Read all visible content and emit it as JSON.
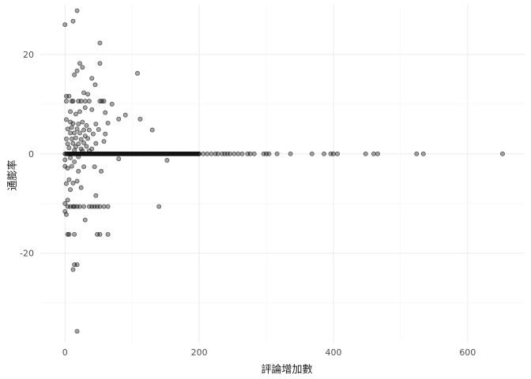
{
  "chart_data": {
    "type": "scatter",
    "xlabel": "評論增加數",
    "ylabel": "通膨率",
    "xlim": [
      -38,
      685
    ],
    "ylim": [
      -38,
      30
    ],
    "x_ticks": [
      0,
      200,
      400,
      600
    ],
    "y_ticks": [
      -20,
      0,
      20
    ],
    "x_minor": [
      100,
      300,
      500
    ],
    "y_minor": [
      -30,
      -10,
      10
    ],
    "x_tick_labels": [
      "0",
      "200",
      "400",
      "600"
    ],
    "y_tick_labels": [
      "-20",
      "0",
      "20"
    ],
    "grid": true,
    "point_color": "#000000",
    "points": [
      {
        "x": 0,
        "y": 26
      },
      {
        "x": 12,
        "y": 26.7
      },
      {
        "x": 18,
        "y": 28.8
      },
      {
        "x": 52,
        "y": 22.3
      },
      {
        "x": 18,
        "y": 16.7
      },
      {
        "x": 22,
        "y": 18.2
      },
      {
        "x": 26,
        "y": 17.4
      },
      {
        "x": 14,
        "y": 15.9
      },
      {
        "x": 108,
        "y": 16.2
      },
      {
        "x": 40,
        "y": 15.2
      },
      {
        "x": 45,
        "y": 13.9
      },
      {
        "x": 52,
        "y": 18.2
      },
      {
        "x": 2,
        "y": 11.6
      },
      {
        "x": 6,
        "y": 11.6
      },
      {
        "x": 28,
        "y": 12.3
      },
      {
        "x": 34,
        "y": 12.0
      },
      {
        "x": 2,
        "y": 10.6
      },
      {
        "x": 10,
        "y": 10.6
      },
      {
        "x": 12,
        "y": 10.6
      },
      {
        "x": 20,
        "y": 10.6
      },
      {
        "x": 24,
        "y": 10.6
      },
      {
        "x": 30,
        "y": 10.6
      },
      {
        "x": 36,
        "y": 10.6
      },
      {
        "x": 52,
        "y": 10.6
      },
      {
        "x": 55,
        "y": 10.6
      },
      {
        "x": 58,
        "y": 10.6
      },
      {
        "x": 70,
        "y": 10.0
      },
      {
        "x": 30,
        "y": 9.3
      },
      {
        "x": 8,
        "y": 8.5
      },
      {
        "x": 16,
        "y": 8.0
      },
      {
        "x": 22,
        "y": 8.5
      },
      {
        "x": 40,
        "y": 8.9
      },
      {
        "x": 60,
        "y": 8.3
      },
      {
        "x": 90,
        "y": 7.8
      },
      {
        "x": 80,
        "y": 7.0
      },
      {
        "x": 112,
        "y": 7.0
      },
      {
        "x": 2,
        "y": 6.9
      },
      {
        "x": 8,
        "y": 6.4
      },
      {
        "x": 12,
        "y": 6.1
      },
      {
        "x": 20,
        "y": 6.0
      },
      {
        "x": 26,
        "y": 6.4
      },
      {
        "x": 32,
        "y": 5.7
      },
      {
        "x": 46,
        "y": 6.0
      },
      {
        "x": 64,
        "y": 6.2
      },
      {
        "x": 4,
        "y": 5.0
      },
      {
        "x": 10,
        "y": 5.3
      },
      {
        "x": 18,
        "y": 5.0
      },
      {
        "x": 28,
        "y": 4.8
      },
      {
        "x": 36,
        "y": 4.8
      },
      {
        "x": 50,
        "y": 4.9
      },
      {
        "x": 130,
        "y": 4.8
      },
      {
        "x": 8,
        "y": 4.2
      },
      {
        "x": 14,
        "y": 4.2
      },
      {
        "x": 22,
        "y": 4.2
      },
      {
        "x": 30,
        "y": 3.6
      },
      {
        "x": 42,
        "y": 4.0
      },
      {
        "x": 60,
        "y": 4.0
      },
      {
        "x": 2,
        "y": 3.0
      },
      {
        "x": 10,
        "y": 3.0
      },
      {
        "x": 16,
        "y": 3.2
      },
      {
        "x": 24,
        "y": 2.9
      },
      {
        "x": 34,
        "y": 3.1
      },
      {
        "x": 58,
        "y": 2.5
      },
      {
        "x": 4,
        "y": 2.0
      },
      {
        "x": 12,
        "y": 2.1
      },
      {
        "x": 20,
        "y": 2.0
      },
      {
        "x": 28,
        "y": 2.2
      },
      {
        "x": 46,
        "y": 2.1
      },
      {
        "x": 6,
        "y": 1.2
      },
      {
        "x": 16,
        "y": 1.4
      },
      {
        "x": 24,
        "y": 1.0
      },
      {
        "x": 32,
        "y": 1.5
      },
      {
        "x": 40,
        "y": 1.0
      },
      {
        "x": 14,
        "y": 0.7
      },
      {
        "x": 26,
        "y": 0.6
      },
      {
        "x": 36,
        "y": 0.6
      },
      {
        "x": 0,
        "y": -1.2
      },
      {
        "x": 8,
        "y": -0.8
      },
      {
        "x": 14,
        "y": -1.6
      },
      {
        "x": 20,
        "y": -0.6
      },
      {
        "x": 80,
        "y": -1.0
      },
      {
        "x": 152,
        "y": -1.3
      },
      {
        "x": 0,
        "y": -2.5
      },
      {
        "x": 4,
        "y": -2.9
      },
      {
        "x": 10,
        "y": -2.5
      },
      {
        "x": 20,
        "y": -3.5
      },
      {
        "x": 28,
        "y": -2.6
      },
      {
        "x": 44,
        "y": -2.6
      },
      {
        "x": 54,
        "y": -3.5
      },
      {
        "x": 6,
        "y": -5.2
      },
      {
        "x": 12,
        "y": -5.9
      },
      {
        "x": 2,
        "y": -6.0
      },
      {
        "x": 18,
        "y": -5.5
      },
      {
        "x": 8,
        "y": -7.2
      },
      {
        "x": 24,
        "y": -6.8
      },
      {
        "x": 4,
        "y": -9.3
      },
      {
        "x": 46,
        "y": -8.4
      },
      {
        "x": 0,
        "y": -10.0
      },
      {
        "x": 4,
        "y": -10.6
      },
      {
        "x": 8,
        "y": -10.6
      },
      {
        "x": 12,
        "y": -10.6
      },
      {
        "x": 14,
        "y": -10.6
      },
      {
        "x": 18,
        "y": -10.6
      },
      {
        "x": 22,
        "y": -10.6
      },
      {
        "x": 28,
        "y": -10.6
      },
      {
        "x": 36,
        "y": -10.6
      },
      {
        "x": 40,
        "y": -10.6
      },
      {
        "x": 44,
        "y": -10.6
      },
      {
        "x": 48,
        "y": -10.6
      },
      {
        "x": 52,
        "y": -10.6
      },
      {
        "x": 58,
        "y": -10.6
      },
      {
        "x": 64,
        "y": -10.6
      },
      {
        "x": 140,
        "y": -10.6
      },
      {
        "x": 0,
        "y": -11.6
      },
      {
        "x": 2,
        "y": -12.2
      },
      {
        "x": 30,
        "y": -13.3
      },
      {
        "x": 4,
        "y": -16.2
      },
      {
        "x": 6,
        "y": -16.2
      },
      {
        "x": 14,
        "y": -16.2
      },
      {
        "x": 48,
        "y": -16.2
      },
      {
        "x": 52,
        "y": -16.2
      },
      {
        "x": 64,
        "y": -16.2
      },
      {
        "x": 14,
        "y": -22.3
      },
      {
        "x": 18,
        "y": -22.3
      },
      {
        "x": 12,
        "y": -23.3
      },
      {
        "x": 18,
        "y": -35.7
      },
      {
        "x": 200,
        "y": 0
      },
      {
        "x": 206,
        "y": 0
      },
      {
        "x": 212,
        "y": 0
      },
      {
        "x": 218,
        "y": 0
      },
      {
        "x": 224,
        "y": 0
      },
      {
        "x": 228,
        "y": 0
      },
      {
        "x": 234,
        "y": 0
      },
      {
        "x": 238,
        "y": 0
      },
      {
        "x": 242,
        "y": 0
      },
      {
        "x": 246,
        "y": 0
      },
      {
        "x": 252,
        "y": 0
      },
      {
        "x": 258,
        "y": 0
      },
      {
        "x": 264,
        "y": 0
      },
      {
        "x": 272,
        "y": 0
      },
      {
        "x": 276,
        "y": 0
      },
      {
        "x": 282,
        "y": 0
      },
      {
        "x": 296,
        "y": 0
      },
      {
        "x": 300,
        "y": 0
      },
      {
        "x": 304,
        "y": 0
      },
      {
        "x": 316,
        "y": 0
      },
      {
        "x": 336,
        "y": 0
      },
      {
        "x": 368,
        "y": 0
      },
      {
        "x": 386,
        "y": 0
      },
      {
        "x": 396,
        "y": 0
      },
      {
        "x": 400,
        "y": 0
      },
      {
        "x": 406,
        "y": 0
      },
      {
        "x": 448,
        "y": 0
      },
      {
        "x": 460,
        "y": 0
      },
      {
        "x": 466,
        "y": 0
      },
      {
        "x": 524,
        "y": 0
      },
      {
        "x": 534,
        "y": 0
      },
      {
        "x": 652,
        "y": 0
      }
    ],
    "zero_band": {
      "x_from": 0,
      "x_to": 200,
      "y": 0
    }
  }
}
